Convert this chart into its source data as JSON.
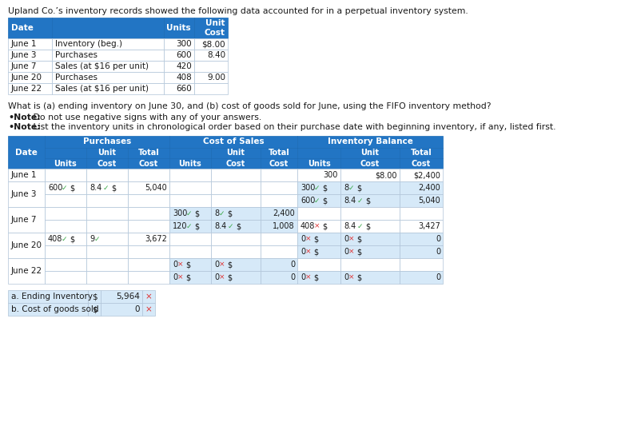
{
  "title_text": "Upland Co.’s inventory records showed the following data accounted for in a perpetual inventory system.",
  "question_text": "What is (a) ending inventory on June 30, and (b) cost of goods sold for June, using the FIFO inventory method?",
  "note1_bold": "•Note:",
  "note1_rest": " Do not use negative signs with any of your answers.",
  "note2_bold": "•Note:",
  "note2_rest": " List the inventory units in chronological order based on their purchase date with beginning inventory, if any, listed first.",
  "header_bg": "#2275C4",
  "header_text_color": "#FFFFFF",
  "white": "#FFFFFF",
  "light_blue": "#D6E9F8",
  "green_color": "#3DAA4A",
  "red_color": "#E03030",
  "border_color": "#B0C4D8",
  "fig_bg": "#FFFFFF",
  "text_color": "#1A1A1A",
  "blue_text": "#1F6FBF"
}
